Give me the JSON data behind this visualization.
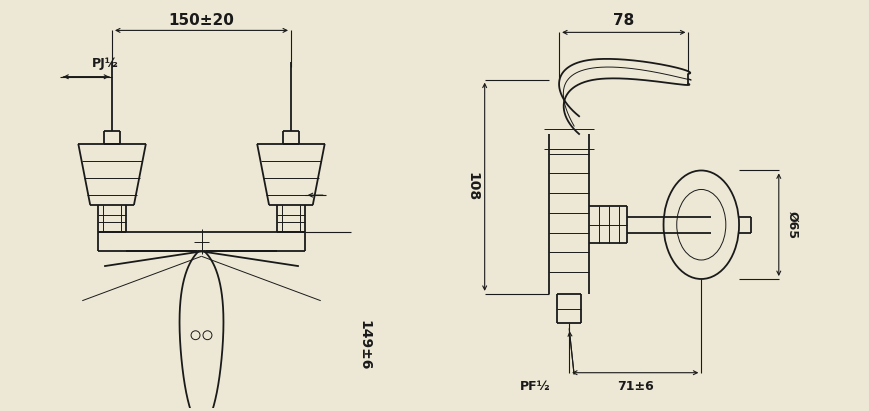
{
  "bg_color": "#ede8d5",
  "line_color": "#1a1a1a",
  "fig_width": 8.7,
  "fig_height": 4.11,
  "dpi": 100,
  "labels": {
    "dim_150": "150±20",
    "dim_149": "149±6",
    "dim_pj": "PJ½",
    "dim_78": "78",
    "dim_108": "108",
    "dim_71": "71±6",
    "dim_65": "Ø65",
    "dim_pf": "PF½"
  }
}
